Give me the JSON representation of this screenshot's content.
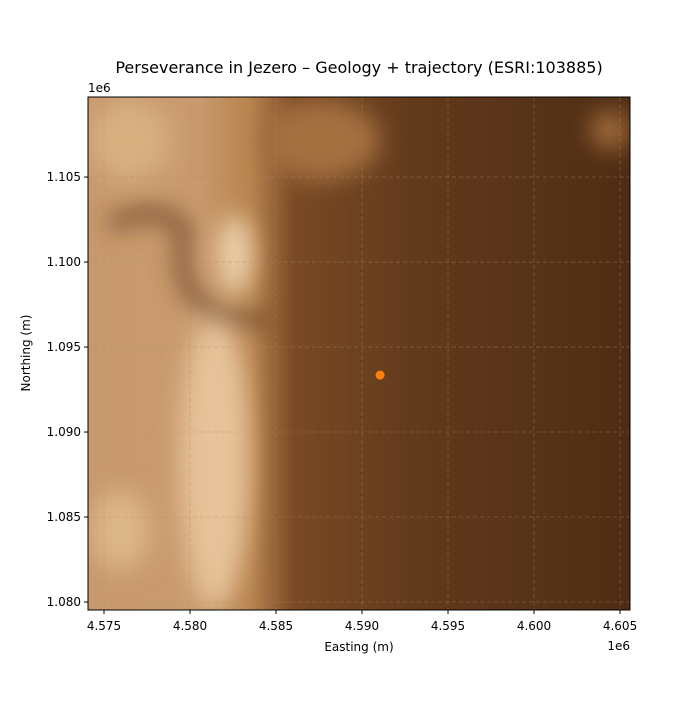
{
  "chart_data": {
    "type": "scatter",
    "title": "Perseverance in Jezero – Geology + trajectory (ESRI:103885)",
    "x_label": "Easting (m)",
    "y_label": "Northing (m)",
    "x_offset_label": "1e6",
    "y_offset_label": "1e6",
    "xlim": [
      4574070,
      4605580
    ],
    "ylim": [
      1079530,
      1109710
    ],
    "xticks": [
      {
        "value": 4575000,
        "label": "4.575"
      },
      {
        "value": 4580000,
        "label": "4.580"
      },
      {
        "value": 4585000,
        "label": "4.585"
      },
      {
        "value": 4590000,
        "label": "4.590"
      },
      {
        "value": 4595000,
        "label": "4.595"
      },
      {
        "value": 4600000,
        "label": "4.600"
      },
      {
        "value": 4605000,
        "label": "4.605"
      }
    ],
    "yticks": [
      {
        "value": 1080000,
        "label": "1.080"
      },
      {
        "value": 1085000,
        "label": "1.085"
      },
      {
        "value": 1090000,
        "label": "1.090"
      },
      {
        "value": 1095000,
        "label": "1.095"
      },
      {
        "value": 1100000,
        "label": "1.100"
      },
      {
        "value": 1105000,
        "label": "1.105"
      }
    ],
    "grid": true,
    "series": [
      {
        "color": "#ff7f0e",
        "x": [
          4591050
        ],
        "values": [
          1093350
        ]
      }
    ]
  }
}
